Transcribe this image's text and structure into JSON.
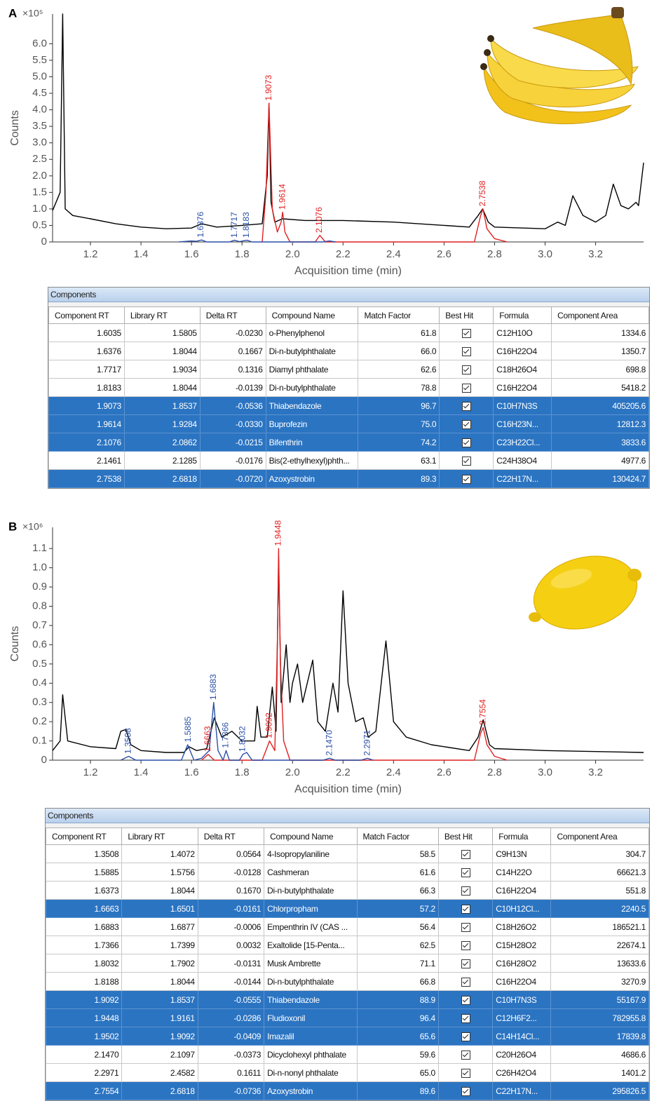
{
  "chart_data": [
    {
      "type": "line",
      "panel_label": "A",
      "y_multiplier": "×10⁵",
      "ylabel": "Counts",
      "xlabel": "Acquisition time (min)",
      "xlim": [
        1.05,
        3.39
      ],
      "ylim": [
        0,
        6.9
      ],
      "xticks": [
        1.2,
        1.4,
        1.6,
        1.8,
        {
          "value": 2,
          "label": "2.0"
        },
        2.2,
        2.4,
        2.6,
        2.8,
        {
          "value": 3,
          "label": "3.0"
        },
        3.2
      ],
      "yticks": [
        0,
        0.5,
        {
          "value": 1,
          "label": "1.0"
        },
        1.5,
        {
          "value": 2,
          "label": "2.0"
        },
        2.5,
        {
          "value": 3,
          "label": "3.0"
        },
        3.5,
        {
          "value": 4,
          "label": "4.0"
        },
        4.5,
        {
          "value": 5,
          "label": "5.0"
        },
        5.5,
        {
          "value": 6,
          "label": "6.0"
        }
      ],
      "series": [
        {
          "color": "#000000",
          "x": [
            1.05,
            1.08,
            1.09,
            1.1,
            1.13,
            1.2,
            1.3,
            1.4,
            1.5,
            1.6,
            1.64,
            1.7,
            1.8,
            1.88,
            1.9,
            1.907,
            1.915,
            1.93,
            1.96,
            2.05,
            2.2,
            2.4,
            2.6,
            2.7,
            2.735,
            2.753,
            2.775,
            2.8,
            3.0,
            3.05,
            3.08,
            3.11,
            3.15,
            3.2,
            3.24,
            3.27,
            3.3,
            3.33,
            3.36,
            3.37,
            3.39
          ],
          "values": [
            0.95,
            1.5,
            6.9,
            1.0,
            0.8,
            0.7,
            0.55,
            0.45,
            0.4,
            0.42,
            0.55,
            0.45,
            0.5,
            0.55,
            2.0,
            4.2,
            1.2,
            0.6,
            0.7,
            0.65,
            0.65,
            0.6,
            0.5,
            0.45,
            0.8,
            1.0,
            0.6,
            0.45,
            0.4,
            0.6,
            0.5,
            1.4,
            0.8,
            0.6,
            0.8,
            1.75,
            1.1,
            1.0,
            1.2,
            1.1,
            2.4
          ]
        },
        {
          "color": "#e02020",
          "x": [
            1.88,
            1.895,
            1.907,
            1.92,
            1.94,
            1.955,
            1.961,
            1.97,
            1.99,
            2.09,
            2.108,
            2.13,
            2.72,
            2.745,
            2.754,
            2.77,
            2.8,
            2.85
          ],
          "values": [
            0,
            1.5,
            4.2,
            1.0,
            0.3,
            0.6,
            0.9,
            0.3,
            0,
            0,
            0.2,
            0,
            0,
            0.8,
            1.0,
            0.4,
            0.1,
            0
          ]
        },
        {
          "color": "#2a4fa8",
          "x": [
            1.55,
            1.6,
            1.62,
            1.64,
            1.66,
            1.75,
            1.77,
            1.79,
            1.81,
            1.82,
            1.84,
            2.12,
            2.146,
            2.17
          ],
          "values": [
            0,
            0.03,
            0.02,
            0.06,
            0,
            0,
            0.05,
            0.01,
            0.04,
            0.05,
            0,
            0,
            0.03,
            0
          ]
        }
      ],
      "annotations": [
        {
          "label": "1.6376",
          "x": 1.6376,
          "y": 0.06,
          "color": "#2a4fa8"
        },
        {
          "label": "1.7717",
          "x": 1.7717,
          "y": 0.05,
          "color": "#2a4fa8"
        },
        {
          "label": "1.8183",
          "x": 1.8183,
          "y": 0.05,
          "color": "#2a4fa8"
        },
        {
          "label": "1.9073",
          "x": 1.9073,
          "y": 4.2,
          "color": "#e02020"
        },
        {
          "label": "1.9614",
          "x": 1.9614,
          "y": 0.9,
          "color": "#e02020"
        },
        {
          "label": "2.1076",
          "x": 2.1076,
          "y": 0.2,
          "color": "#e02020"
        },
        {
          "label": "2.7538",
          "x": 2.7538,
          "y": 1.0,
          "color": "#e02020"
        }
      ]
    },
    {
      "type": "line",
      "panel_label": "B",
      "y_multiplier": "×10⁶",
      "ylabel": "Counts",
      "xlabel": "Acquisition time (min)",
      "xlim": [
        1.05,
        3.39
      ],
      "ylim": [
        0,
        1.21
      ],
      "xticks": [
        1.2,
        1.4,
        1.6,
        1.8,
        {
          "value": 2,
          "label": "2.0"
        },
        2.2,
        2.4,
        2.6,
        2.8,
        {
          "value": 3,
          "label": "3.0"
        },
        3.2
      ],
      "yticks": [
        0,
        0.1,
        0.2,
        0.3,
        0.4,
        0.5,
        0.6,
        0.7,
        0.8,
        0.9,
        {
          "value": 1,
          "label": "1.0"
        },
        1.1
      ],
      "series": [
        {
          "color": "#000000",
          "x": [
            1.05,
            1.08,
            1.09,
            1.11,
            1.2,
            1.3,
            1.32,
            1.34,
            1.36,
            1.4,
            1.5,
            1.57,
            1.59,
            1.62,
            1.66,
            1.69,
            1.72,
            1.76,
            1.8,
            1.85,
            1.86,
            1.875,
            1.9,
            1.92,
            1.935,
            1.945,
            1.955,
            1.975,
            1.99,
            2.0,
            2.02,
            2.04,
            2.08,
            2.1,
            2.13,
            2.16,
            2.18,
            2.2,
            2.22,
            2.25,
            2.28,
            2.3,
            2.33,
            2.37,
            2.4,
            2.45,
            2.55,
            2.7,
            2.735,
            2.755,
            2.78,
            2.8,
            3.0,
            3.39
          ],
          "values": [
            0.05,
            0.1,
            0.34,
            0.1,
            0.07,
            0.06,
            0.15,
            0.16,
            0.08,
            0.05,
            0.04,
            0.04,
            0.07,
            0.05,
            0.06,
            0.22,
            0.12,
            0.15,
            0.1,
            0.1,
            0.28,
            0.12,
            0.12,
            0.38,
            0.15,
            1.05,
            0.3,
            0.6,
            0.3,
            0.4,
            0.5,
            0.3,
            0.52,
            0.2,
            0.15,
            0.4,
            0.25,
            0.88,
            0.4,
            0.2,
            0.22,
            0.12,
            0.15,
            0.62,
            0.2,
            0.12,
            0.08,
            0.05,
            0.12,
            0.21,
            0.08,
            0.06,
            0.05,
            0.04
          ]
        },
        {
          "color": "#e02020",
          "x": [
            1.64,
            1.666,
            1.69,
            1.88,
            1.909,
            1.93,
            1.94,
            1.945,
            1.952,
            1.965,
            1.99,
            2.72,
            2.745,
            2.755,
            2.77,
            2.8,
            2.85
          ],
          "values": [
            0,
            0.03,
            0,
            0,
            0.1,
            0.05,
            0.6,
            1.1,
            0.5,
            0.1,
            0,
            0,
            0.14,
            0.17,
            0.08,
            0.02,
            0
          ]
        },
        {
          "color": "#2a4fa8",
          "x": [
            1.32,
            1.351,
            1.38,
            1.56,
            1.585,
            1.61,
            1.64,
            1.67,
            1.688,
            1.705,
            1.725,
            1.737,
            1.75,
            1.79,
            1.803,
            1.819,
            1.84,
            2.12,
            2.147,
            2.17,
            2.27,
            2.297,
            2.32
          ],
          "values": [
            0,
            0.02,
            0,
            0,
            0.08,
            0,
            0.01,
            0.05,
            0.3,
            0.05,
            0,
            0.05,
            0,
            0,
            0.03,
            0.04,
            0,
            0,
            0.01,
            0,
            0,
            0.01,
            0
          ]
        }
      ],
      "annotations": [
        {
          "label": "1.3508",
          "x": 1.3508,
          "y": 0.02,
          "color": "#2a4fa8"
        },
        {
          "label": "1.5885",
          "x": 1.5885,
          "y": 0.08,
          "color": "#2a4fa8"
        },
        {
          "label": "1.6663",
          "x": 1.6663,
          "y": 0.03,
          "color": "#e02020"
        },
        {
          "label": "1.6883",
          "x": 1.6883,
          "y": 0.3,
          "color": "#2a4fa8"
        },
        {
          "label": "1.7366",
          "x": 1.7366,
          "y": 0.05,
          "color": "#2a4fa8"
        },
        {
          "label": "1.8032",
          "x": 1.8032,
          "y": 0.03,
          "color": "#2a4fa8"
        },
        {
          "label": "1.9092",
          "x": 1.9092,
          "y": 0.1,
          "color": "#e02020"
        },
        {
          "label": "1.9448",
          "x": 1.9448,
          "y": 1.1,
          "color": "#e02020"
        },
        {
          "label": "2.1470",
          "x": 2.147,
          "y": 0.01,
          "color": "#2a4fa8"
        },
        {
          "label": "2.2971",
          "x": 2.2971,
          "y": 0.01,
          "color": "#2a4fa8"
        },
        {
          "label": "2.7554",
          "x": 2.7554,
          "y": 0.17,
          "color": "#e02020"
        }
      ]
    }
  ],
  "tables": [
    {
      "title": "Components",
      "columns": [
        "Component RT",
        "Library RT",
        "Delta RT",
        "Compound Name",
        "Match Factor",
        "Best Hit",
        "Formula",
        "Component Area"
      ],
      "rows": [
        [
          "1.6035",
          "1.5805",
          "-0.0230",
          "o-Phenylphenol",
          "61.8",
          true,
          "C12H10O",
          "1334.6"
        ],
        [
          "1.6376",
          "1.8044",
          "0.1667",
          "Di-n-butylphthalate",
          "66.0",
          true,
          "C16H22O4",
          "1350.7"
        ],
        [
          "1.7717",
          "1.9034",
          "0.1316",
          "Diamyl phthalate",
          "62.6",
          true,
          "C18H26O4",
          "698.8"
        ],
        [
          "1.8183",
          "1.8044",
          "-0.0139",
          "Di-n-butylphthalate",
          "78.8",
          true,
          "C16H22O4",
          "5418.2"
        ],
        [
          "1.9073",
          "1.8537",
          "-0.0536",
          "Thiabendazole",
          "96.7",
          true,
          "C10H7N3S",
          "405205.6"
        ],
        [
          "1.9614",
          "1.9284",
          "-0.0330",
          "Buprofezin",
          "75.0",
          true,
          "C16H23N...",
          "12812.3"
        ],
        [
          "2.1076",
          "2.0862",
          "-0.0215",
          "Bifenthrin",
          "74.2",
          true,
          "C23H22Cl...",
          "3833.6"
        ],
        [
          "2.1461",
          "2.1285",
          "-0.0176",
          "Bis(2-ethylhexyl)phth...",
          "63.1",
          true,
          "C24H38O4",
          "4977.6"
        ],
        [
          "2.7538",
          "2.6818",
          "-0.0720",
          "Azoxystrobin",
          "89.3",
          true,
          "C22H17N...",
          "130424.7"
        ]
      ],
      "selected": [
        false,
        false,
        false,
        false,
        true,
        true,
        true,
        false,
        true
      ]
    },
    {
      "title": "Components",
      "columns": [
        "Component RT",
        "Library RT",
        "Delta RT",
        "Compound Name",
        "Match Factor",
        "Best Hit",
        "Formula",
        "Component Area"
      ],
      "rows": [
        [
          "1.3508",
          "1.4072",
          "0.0564",
          "4-Isopropylaniline",
          "58.5",
          true,
          "C9H13N",
          "304.7"
        ],
        [
          "1.5885",
          "1.5756",
          "-0.0128",
          "Cashmeran",
          "61.6",
          true,
          "C14H22O",
          "66621.3"
        ],
        [
          "1.6373",
          "1.8044",
          "0.1670",
          "Di-n-butylphthalate",
          "66.3",
          true,
          "C16H22O4",
          "551.8"
        ],
        [
          "1.6663",
          "1.6501",
          "-0.0161",
          "Chlorpropham",
          "57.2",
          true,
          "C10H12Cl...",
          "2240.5"
        ],
        [
          "1.6883",
          "1.6877",
          "-0.0006",
          "Empenthrin IV (CAS ...",
          "56.4",
          true,
          "C18H26O2",
          "186521.1"
        ],
        [
          "1.7366",
          "1.7399",
          "0.0032",
          "Exaltolide [15-Penta...",
          "62.5",
          true,
          "C15H28O2",
          "22674.1"
        ],
        [
          "1.8032",
          "1.7902",
          "-0.0131",
          "Musk Ambrette",
          "71.1",
          true,
          "C16H28O2",
          "13633.6"
        ],
        [
          "1.8188",
          "1.8044",
          "-0.0144",
          "Di-n-butylphthalate",
          "66.8",
          true,
          "C16H22O4",
          "3270.9"
        ],
        [
          "1.9092",
          "1.8537",
          "-0.0555",
          "Thiabendazole",
          "88.9",
          true,
          "C10H7N3S",
          "55167.9"
        ],
        [
          "1.9448",
          "1.9161",
          "-0.0286",
          "Fludioxonil",
          "96.4",
          true,
          "C12H6F2...",
          "782955.8"
        ],
        [
          "1.9502",
          "1.9092",
          "-0.0409",
          "Imazalil",
          "65.6",
          true,
          "C14H14Cl...",
          "17839.8"
        ],
        [
          "2.1470",
          "2.1097",
          "-0.0373",
          "Dicyclohexyl phthalate",
          "59.6",
          true,
          "C20H26O4",
          "4686.6"
        ],
        [
          "2.2971",
          "2.4582",
          "0.1611",
          "Di-n-nonyl phthalate",
          "65.0",
          true,
          "C26H42O4",
          "1401.2"
        ],
        [
          "2.7554",
          "2.6818",
          "-0.0736",
          "Azoxystrobin",
          "89.6",
          true,
          "C22H17N...",
          "295826.5"
        ]
      ],
      "selected": [
        false,
        false,
        false,
        true,
        false,
        false,
        false,
        false,
        true,
        true,
        true,
        false,
        false,
        true
      ]
    }
  ]
}
